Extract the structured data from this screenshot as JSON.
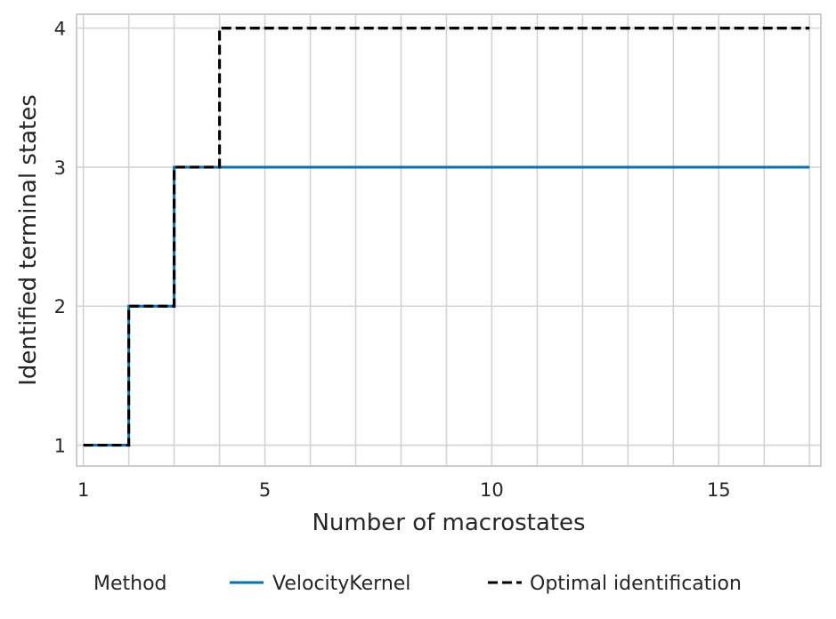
{
  "chart_data": {
    "type": "line",
    "step": "post",
    "xlabel": "Number of macrostates",
    "ylabel": "Identified terminal states",
    "xlim": [
      0.85,
      17.25
    ],
    "ylim": [
      0.85,
      4.1
    ],
    "xticks": [
      1,
      5,
      10,
      15
    ],
    "yticks": [
      1,
      2,
      3,
      4
    ],
    "x_gridlines": [
      1,
      2,
      3,
      4,
      5,
      6,
      7,
      8,
      9,
      10,
      11,
      12,
      13,
      14,
      15,
      16,
      17
    ],
    "grid": true,
    "x": [
      1,
      2,
      3,
      4,
      5,
      6,
      7,
      8,
      9,
      10,
      11,
      12,
      13,
      14,
      15,
      16,
      17
    ],
    "series": [
      {
        "name": "VelocityKernel",
        "color": "#0173b2",
        "linestyle": "solid",
        "values": [
          1,
          2,
          3,
          3,
          3,
          3,
          3,
          3,
          3,
          3,
          3,
          3,
          3,
          3,
          3,
          3,
          3
        ]
      },
      {
        "name": "Optimal identification",
        "color": "#000000",
        "linestyle": "dashed",
        "values": [
          1,
          2,
          3,
          4,
          4,
          4,
          4,
          4,
          4,
          4,
          4,
          4,
          4,
          4,
          4,
          4,
          4
        ]
      }
    ],
    "legend": {
      "title": "Method",
      "placement": "bottom"
    }
  }
}
